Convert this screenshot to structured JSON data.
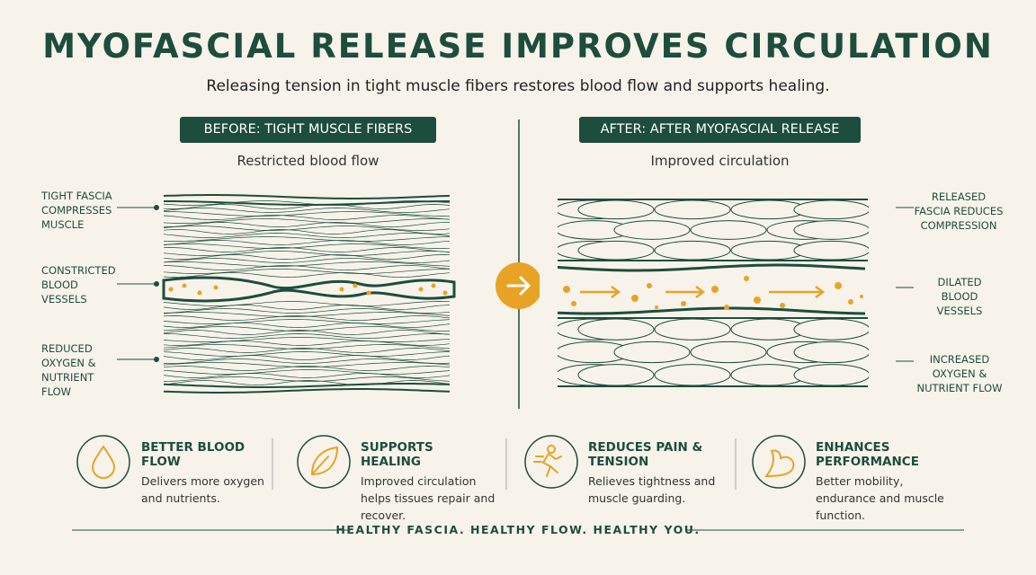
{
  "header": {
    "title": "MYOFASCIAL RELEASE IMPROVES CIRCULATION",
    "subtitle": "Releasing tension in tight muscle fibers restores blood flow and supports healing."
  },
  "before": {
    "badge": "BEFORE: TIGHT MUSCLE FIBERS",
    "caption": "Restricted blood flow",
    "labels": [
      "TIGHT FASCIA COMPRESSES MUSCLE",
      "CONSTRICTED BLOOD VESSELS",
      "REDUCED OXYGEN & NUTRIENT FLOW"
    ]
  },
  "after": {
    "badge": "AFTER: AFTER MYOFASCIAL RELEASE",
    "caption": "Improved circulation",
    "labels": [
      "RELEASED FASCIA REDUCES COMPRESSION",
      "DILATED BLOOD VESSELS",
      "INCREASED OXYGEN & NUTRIENT FLOW"
    ]
  },
  "benefits": [
    {
      "title": "BETTER BLOOD FLOW",
      "text": "Delivers more oxygen and nutrients."
    },
    {
      "title": "SUPPORTS HEALING",
      "text": "Improved circulation helps tissues repair and recover."
    },
    {
      "title": "REDUCES PAIN & TENSION",
      "text": "Relieves tightness and muscle guarding."
    },
    {
      "title": "ENHANCES PERFORMANCE",
      "text": "Better mobility, endurance and muscle function."
    }
  ],
  "footer": {
    "tagline": "HEALTHY FASCIA. HEALTHY FLOW. HEALTHY YOU."
  }
}
